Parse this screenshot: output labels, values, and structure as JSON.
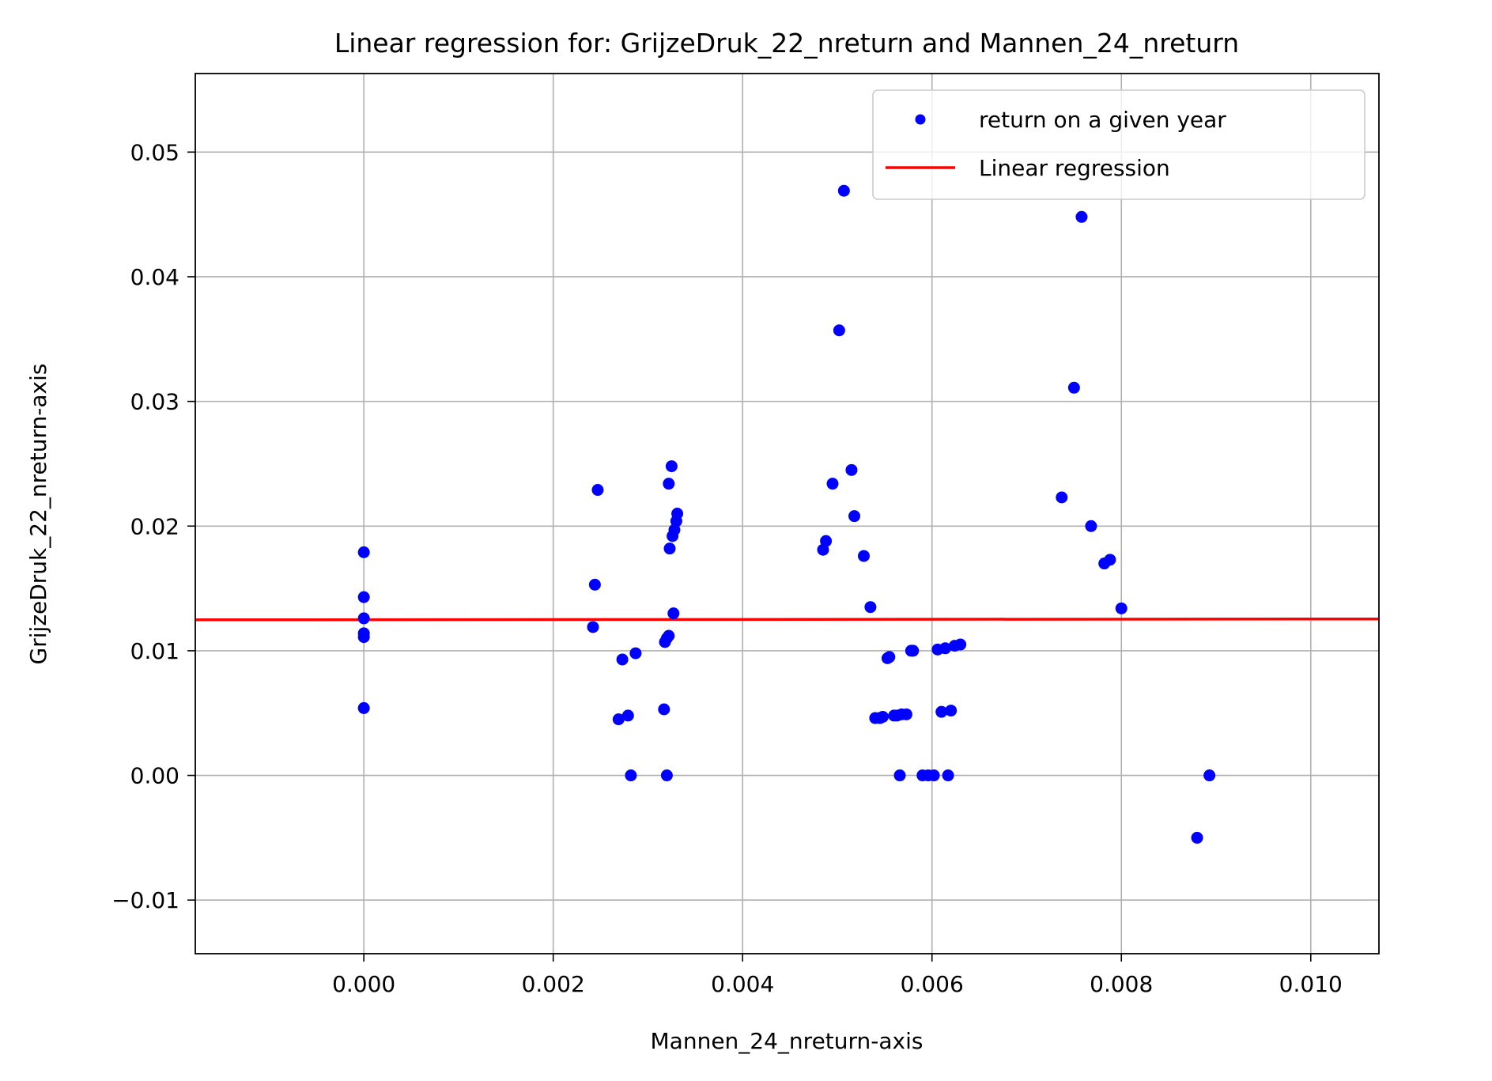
{
  "chart_data": {
    "type": "scatter",
    "title": "Linear regression for: GrijzeDruk_22_nreturn and Mannen_24_nreturn",
    "xlabel": "Mannen_24_nreturn-axis",
    "ylabel": "GrijzeDruk_22_nreturn-axis",
    "xlim": [
      -0.00178,
      0.01072
    ],
    "ylim": [
      -0.0143,
      0.0563
    ],
    "xticks": [
      0.0,
      0.002,
      0.004,
      0.006,
      0.008,
      0.01
    ],
    "xtick_labels": [
      "0.000",
      "0.002",
      "0.004",
      "0.006",
      "0.008",
      "0.010"
    ],
    "yticks": [
      -0.01,
      0.0,
      0.01,
      0.02,
      0.03,
      0.04,
      0.05
    ],
    "ytick_labels": [
      "−0.01",
      "0.00",
      "0.01",
      "0.02",
      "0.03",
      "0.04",
      "0.05"
    ],
    "grid": true,
    "legend_position": "top-right",
    "colors": {
      "points": "#0000ff",
      "regression": "#ff0000"
    },
    "series": [
      {
        "name": "return on a given year",
        "kind": "scatter",
        "points": [
          [
            0.0,
            0.0179
          ],
          [
            0.0,
            0.0143
          ],
          [
            0.0,
            0.0126
          ],
          [
            0.0,
            0.0114
          ],
          [
            0.0,
            0.0111
          ],
          [
            0.0,
            0.0054
          ],
          [
            0.00242,
            0.0119
          ],
          [
            0.00244,
            0.0153
          ],
          [
            0.00247,
            0.0229
          ],
          [
            0.00269,
            0.0045
          ],
          [
            0.00273,
            0.0093
          ],
          [
            0.00279,
            0.0048
          ],
          [
            0.00282,
            0.0
          ],
          [
            0.00287,
            0.0098
          ],
          [
            0.00317,
            0.0053
          ],
          [
            0.00318,
            0.0107
          ],
          [
            0.0032,
            0.011
          ],
          [
            0.0032,
            0.0
          ],
          [
            0.00322,
            0.0112
          ],
          [
            0.00322,
            0.0234
          ],
          [
            0.00323,
            0.0182
          ],
          [
            0.00325,
            0.0248
          ],
          [
            0.00326,
            0.0192
          ],
          [
            0.00327,
            0.013
          ],
          [
            0.00328,
            0.0197
          ],
          [
            0.0033,
            0.0204
          ],
          [
            0.00331,
            0.021
          ],
          [
            0.00485,
            0.0181
          ],
          [
            0.00488,
            0.0188
          ],
          [
            0.00495,
            0.0234
          ],
          [
            0.00502,
            0.0357
          ],
          [
            0.00507,
            0.0469
          ],
          [
            0.00515,
            0.0245
          ],
          [
            0.00518,
            0.0208
          ],
          [
            0.00528,
            0.0176
          ],
          [
            0.00535,
            0.0135
          ],
          [
            0.0054,
            0.0046
          ],
          [
            0.00545,
            0.0046
          ],
          [
            0.00548,
            0.0047
          ],
          [
            0.00553,
            0.0094
          ],
          [
            0.00555,
            0.0095
          ],
          [
            0.0056,
            0.0048
          ],
          [
            0.00563,
            0.0048
          ],
          [
            0.00566,
            0.0
          ],
          [
            0.00568,
            0.0049
          ],
          [
            0.00573,
            0.0049
          ],
          [
            0.00578,
            0.01
          ],
          [
            0.0058,
            0.01
          ],
          [
            0.0059,
            0.0
          ],
          [
            0.00596,
            0.0
          ],
          [
            0.00602,
            0.0
          ],
          [
            0.00606,
            0.0101
          ],
          [
            0.0061,
            0.0051
          ],
          [
            0.00614,
            0.0102
          ],
          [
            0.00617,
            0.0
          ],
          [
            0.0062,
            0.0052
          ],
          [
            0.00624,
            0.0104
          ],
          [
            0.0063,
            0.0105
          ],
          [
            0.00737,
            0.0223
          ],
          [
            0.0075,
            0.0311
          ],
          [
            0.00758,
            0.0448
          ],
          [
            0.00768,
            0.02
          ],
          [
            0.00782,
            0.017
          ],
          [
            0.00788,
            0.0173
          ],
          [
            0.008,
            0.0134
          ],
          [
            0.0088,
            -0.005
          ],
          [
            0.00893,
            0.0
          ]
        ]
      },
      {
        "name": "Linear regression",
        "kind": "line",
        "x": [
          -0.00178,
          0.01072
        ],
        "y": [
          0.01248,
          0.01255
        ]
      }
    ]
  }
}
